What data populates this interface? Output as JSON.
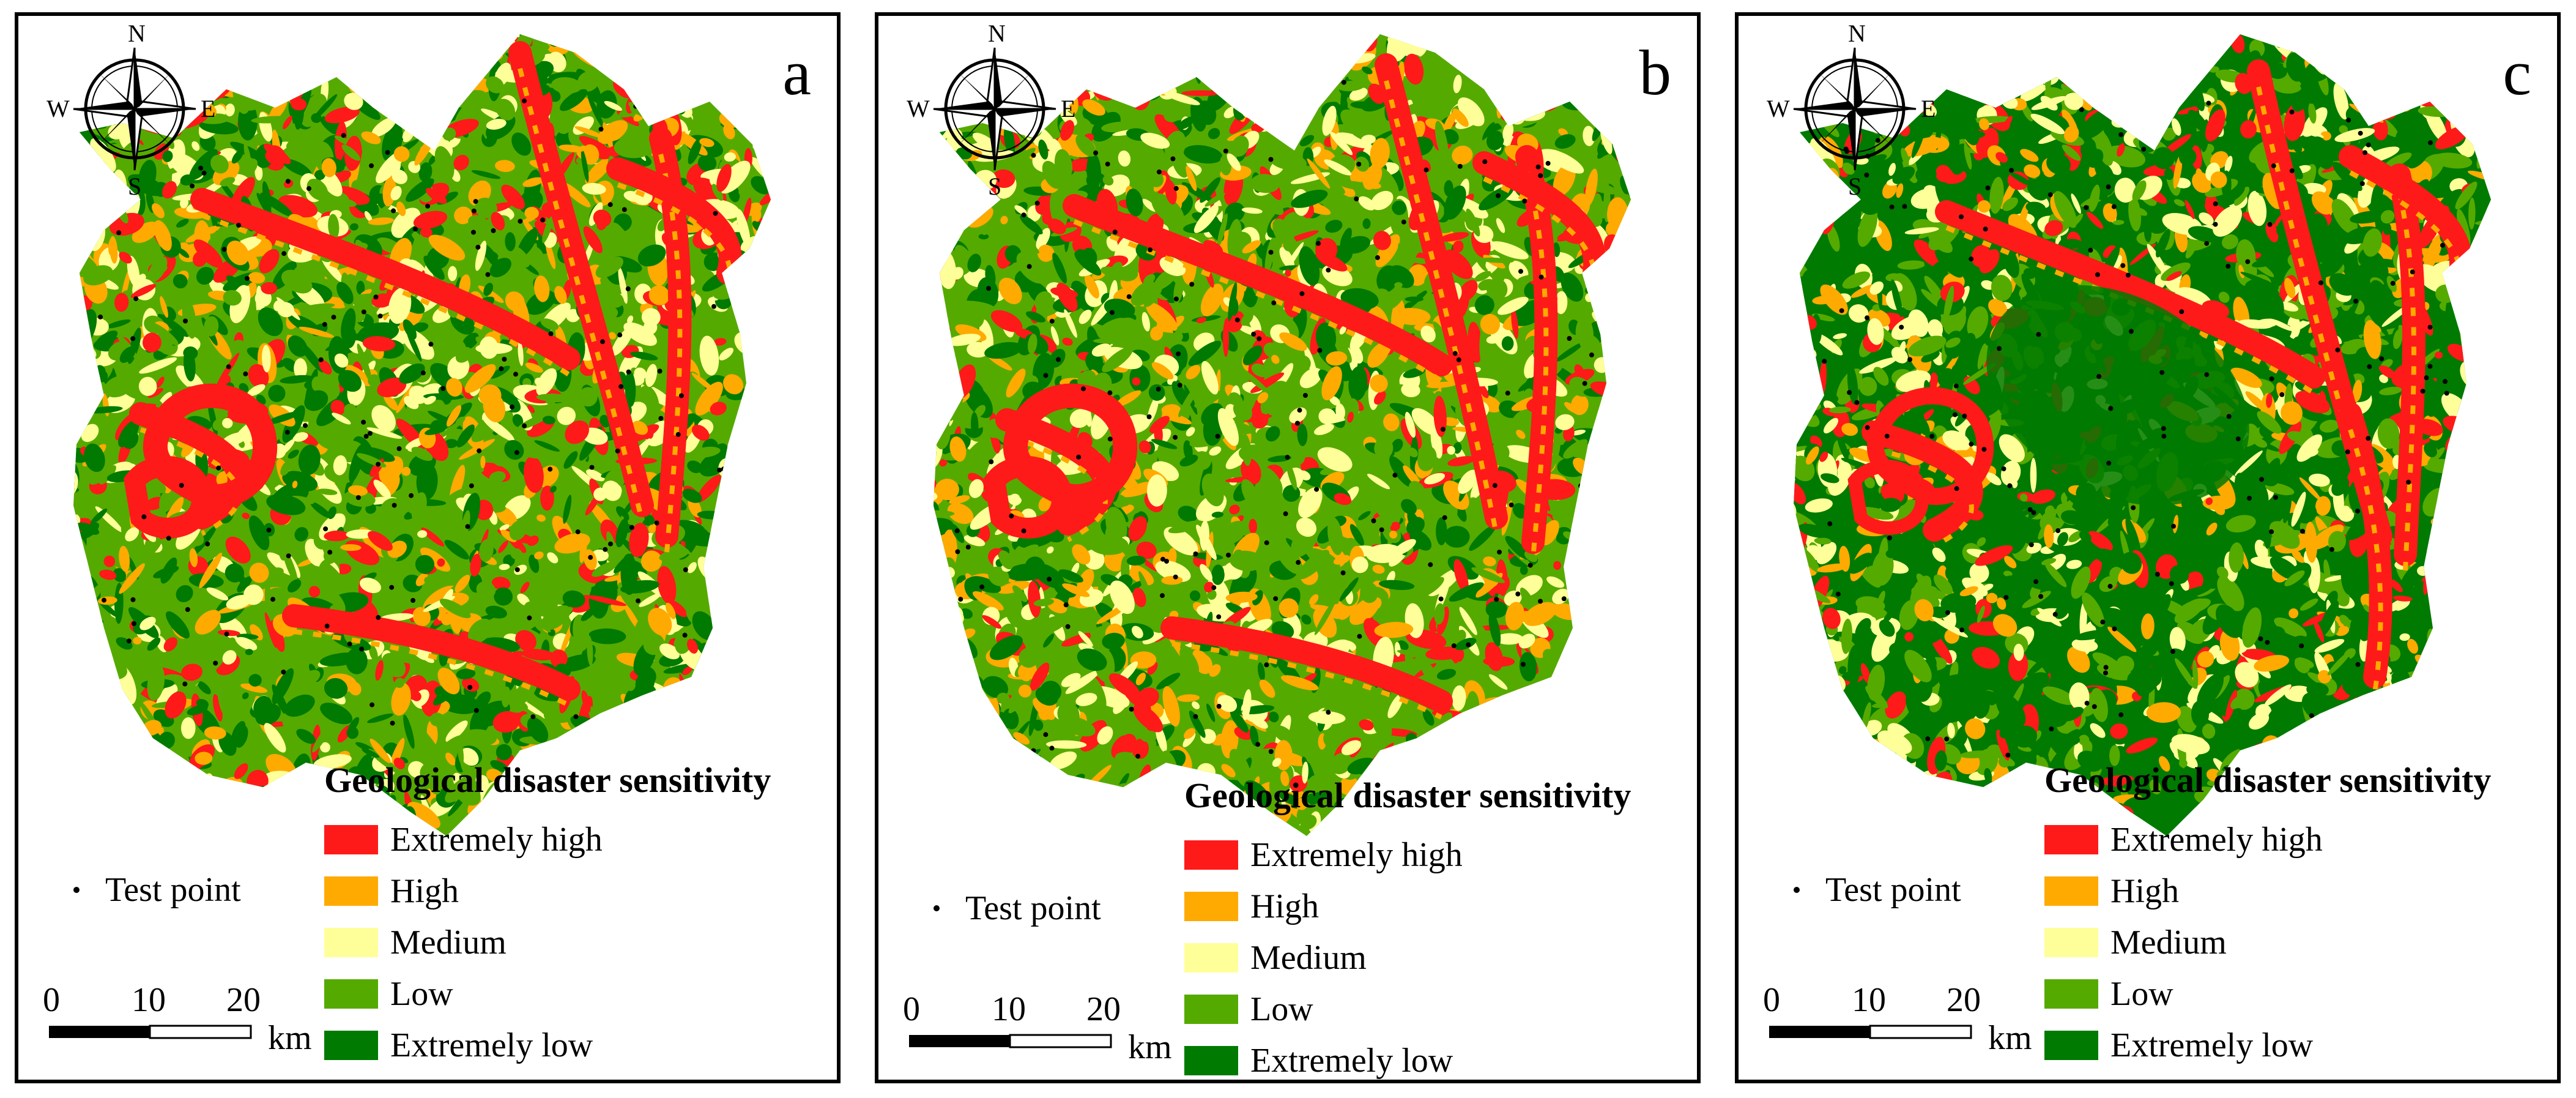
{
  "figure": {
    "panels": [
      {
        "id": "a",
        "label": "a",
        "variant": 0
      },
      {
        "id": "b",
        "label": "b",
        "variant": 1
      },
      {
        "id": "c",
        "label": "c",
        "variant": 2
      }
    ],
    "compass": {
      "north": "N",
      "south": "S",
      "east": "E",
      "west": "W"
    },
    "legend": {
      "title": "Geological disaster sensitivity",
      "classes": [
        {
          "label": "Extremely high",
          "color": "#ff1a1a"
        },
        {
          "label": "High",
          "color": "#ffaa00"
        },
        {
          "label": "Medium",
          "color": "#ffff99"
        },
        {
          "label": "Low",
          "color": "#55aa00"
        },
        {
          "label": "Extremely low",
          "color": "#007a00"
        }
      ]
    },
    "test_point": {
      "label": "Test point"
    },
    "scale_bar": {
      "ticks": [
        "0",
        "10",
        "20"
      ],
      "unit": "km"
    }
  }
}
